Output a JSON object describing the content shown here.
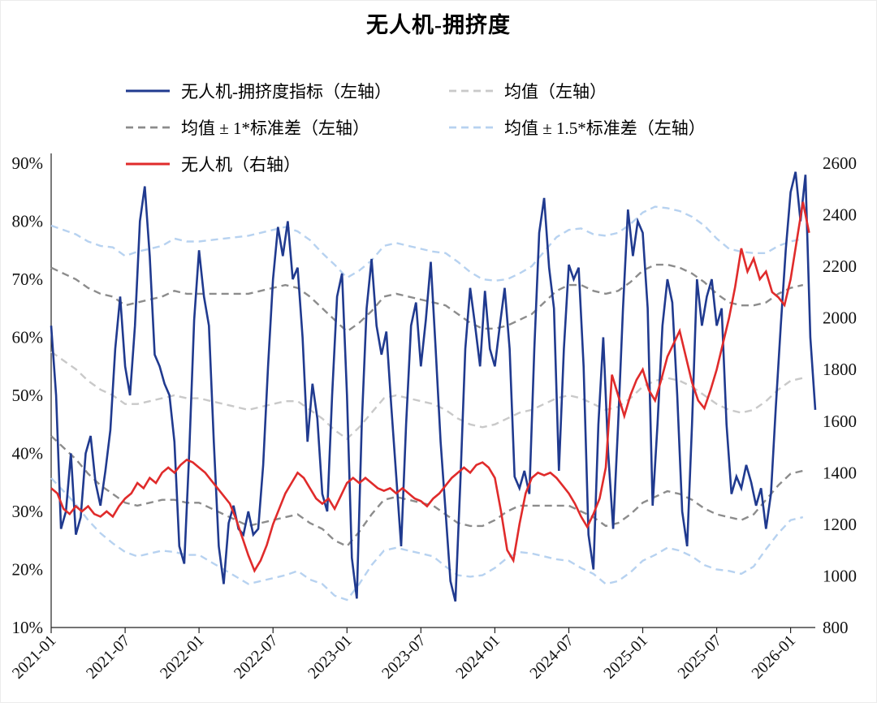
{
  "chart_data": {
    "type": "line",
    "title": "无人机-拥挤度",
    "x_unit": "months since 2021-01",
    "x_range": [
      0,
      62
    ],
    "x_ticks": {
      "positions": [
        0,
        6,
        12,
        18,
        24,
        30,
        36,
        42,
        48,
        54,
        60
      ],
      "labels": [
        "2021-01",
        "2021-07",
        "2022-01",
        "2022-07",
        "2023-01",
        "2023-07",
        "2024-01",
        "2024-07",
        "2025-01",
        "2025-07",
        "2026-01"
      ]
    },
    "left_axis": {
      "min": 10,
      "max": 90,
      "step": 10,
      "suffix": "%"
    },
    "right_axis": {
      "min": 800,
      "max": 2600,
      "step": 200
    },
    "grid": "off",
    "legend_position": "top",
    "stats": {
      "x_start": 0,
      "x_step": 1,
      "mean": [
        57.5,
        56,
        54.5,
        52.5,
        51,
        50,
        48.5,
        48.5,
        49,
        49.5,
        50,
        49.5,
        49.5,
        49,
        48.5,
        48,
        47.5,
        48,
        48.5,
        49,
        49,
        47.5,
        46,
        44,
        42.5,
        44.5,
        47,
        49.5,
        50,
        49.5,
        49,
        48.5,
        47.5,
        46,
        45,
        44.5,
        45,
        46,
        47,
        47.5,
        48.5,
        49.5,
        50,
        49.5,
        48.5,
        47.5,
        48,
        49.5,
        51.5,
        52.5,
        53,
        52.5,
        51.5,
        50,
        48.5,
        47.5,
        47,
        47.5,
        49,
        51,
        52.5,
        53
      ],
      "std": [
        14.5,
        15,
        15.5,
        16,
        16.5,
        17,
        17,
        17.5,
        17.5,
        17.5,
        18,
        18,
        18,
        18.5,
        19,
        19.5,
        20,
        20,
        20,
        20,
        19.5,
        19.5,
        19,
        19,
        18.5,
        18,
        17.5,
        17.5,
        17.5,
        17.5,
        17.5,
        17.5,
        18,
        18,
        17.5,
        17,
        16.5,
        16,
        16,
        16.5,
        17.5,
        18.5,
        19,
        19.5,
        19.5,
        20,
        20,
        20,
        20,
        20,
        19.5,
        19.5,
        19.5,
        19.5,
        19,
        18.5,
        18.5,
        18,
        17,
        16.5,
        16,
        16
      ]
    },
    "series": [
      {
        "name": "无人机-拥挤度指标（左轴）",
        "axis": "left",
        "color": "#203a8f",
        "style": "solid",
        "width": 2.6,
        "data": {
          "x_start": 0,
          "x_step": 0.4,
          "y": [
            62,
            50,
            27,
            30,
            40,
            26,
            29,
            40,
            43,
            35,
            31,
            37,
            44,
            58,
            67,
            55,
            50,
            62,
            80,
            86,
            74,
            57,
            55,
            52,
            50,
            42,
            24,
            21,
            40,
            63,
            75,
            67,
            62,
            42,
            24,
            17.5,
            28,
            31,
            27,
            26,
            30,
            26,
            27,
            38,
            55,
            70,
            79,
            74,
            80,
            70,
            72,
            60,
            42,
            52,
            46,
            33,
            30,
            50,
            67,
            71,
            50,
            22,
            15,
            45,
            65,
            73.5,
            62,
            57,
            61,
            48,
            36,
            24,
            45,
            62,
            66,
            55,
            63,
            73,
            58,
            42,
            30,
            18,
            14.5,
            35,
            58,
            68.5,
            62,
            55,
            68,
            58,
            55,
            62,
            68.5,
            58,
            36,
            34,
            37,
            33,
            58,
            78,
            84,
            72,
            65,
            37,
            58,
            72.5,
            70,
            72,
            55,
            26,
            20,
            45,
            60,
            40,
            27,
            45,
            65,
            82,
            74,
            80,
            78,
            65,
            31,
            45,
            62,
            70,
            66,
            50,
            30,
            24,
            45,
            70,
            62,
            67,
            70,
            62,
            65,
            45,
            33,
            36,
            34,
            38,
            35,
            31,
            34,
            27,
            33,
            48,
            62,
            75,
            85,
            88.5,
            80,
            88,
            60,
            47.5
          ]
        }
      },
      {
        "name": "均值（左轴）",
        "axis": "left",
        "color": "#c9c9c9",
        "style": "dashed",
        "width": 2.4,
        "band_k": 0
      },
      {
        "name": "均值 ± 1*标准差（左轴）",
        "axis": "left",
        "color": "#8c8c8c",
        "style": "dashed",
        "width": 2.4,
        "band_k": 1
      },
      {
        "name": "均值 ± 1.5*标准差（左轴）",
        "axis": "left",
        "color": "#b7d2f0",
        "style": "dashed",
        "width": 2.4,
        "band_k": 1.5
      },
      {
        "name": "无人机（右轴）",
        "axis": "right",
        "color": "#e02b2b",
        "style": "solid",
        "width": 2.6,
        "data": {
          "x_start": 0,
          "x_step": 0.5,
          "y": [
            1340,
            1320,
            1260,
            1240,
            1270,
            1250,
            1270,
            1240,
            1230,
            1250,
            1230,
            1270,
            1300,
            1320,
            1360,
            1340,
            1380,
            1360,
            1400,
            1420,
            1400,
            1430,
            1450,
            1440,
            1420,
            1400,
            1370,
            1340,
            1310,
            1280,
            1220,
            1150,
            1080,
            1020,
            1060,
            1120,
            1200,
            1260,
            1320,
            1360,
            1400,
            1380,
            1340,
            1300,
            1280,
            1300,
            1260,
            1310,
            1360,
            1380,
            1360,
            1380,
            1360,
            1340,
            1330,
            1340,
            1320,
            1340,
            1320,
            1300,
            1290,
            1270,
            1300,
            1320,
            1350,
            1380,
            1400,
            1420,
            1400,
            1430,
            1440,
            1420,
            1380,
            1250,
            1100,
            1060,
            1200,
            1320,
            1380,
            1400,
            1390,
            1400,
            1380,
            1350,
            1320,
            1280,
            1230,
            1190,
            1240,
            1300,
            1420,
            1780,
            1700,
            1620,
            1700,
            1760,
            1800,
            1720,
            1680,
            1760,
            1850,
            1900,
            1950,
            1850,
            1750,
            1680,
            1650,
            1720,
            1800,
            1900,
            2000,
            2120,
            2270,
            2180,
            2230,
            2150,
            2180,
            2100,
            2080,
            2050,
            2150,
            2300,
            2450,
            2330
          ]
        }
      }
    ]
  }
}
